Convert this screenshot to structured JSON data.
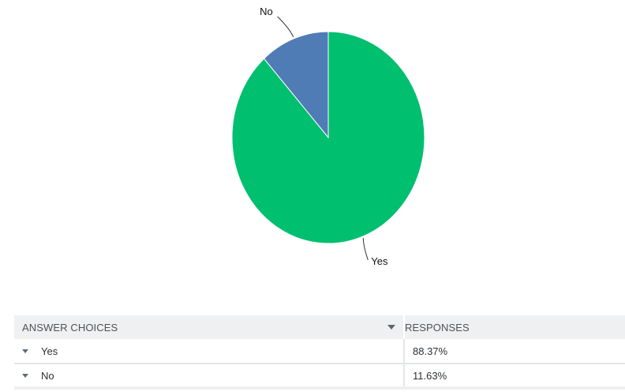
{
  "chart_data": {
    "type": "pie",
    "categories": [
      "Yes",
      "No"
    ],
    "values": [
      88.37,
      11.63
    ],
    "colors": [
      "#00bf6f",
      "#507cb6"
    ],
    "title": "",
    "legend": "none"
  },
  "table": {
    "headers": {
      "choices": "ANSWER CHOICES",
      "responses": "RESPONSES"
    },
    "rows": [
      {
        "choice": "Yes",
        "response": "88.37%"
      },
      {
        "choice": "No",
        "response": "11.63%"
      }
    ]
  }
}
